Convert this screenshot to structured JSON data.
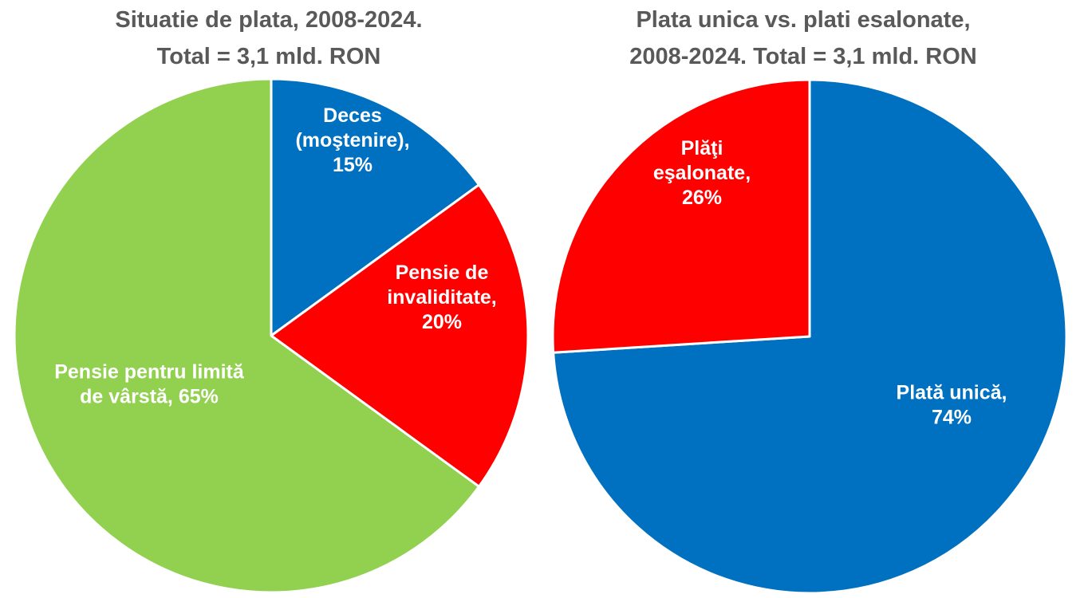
{
  "chart_data": [
    {
      "type": "pie",
      "title_lines": [
        "Situatie de plata, 2008-2024.",
        "Total = 3,1 mld. RON"
      ],
      "start_angle_deg": 0,
      "direction": "clockwise",
      "slices": [
        {
          "label_lines": [
            "Deces",
            "(moştenire),",
            "15%"
          ],
          "value": 15,
          "color": "#0070C0"
        },
        {
          "label_lines": [
            "Pensie de",
            "invaliditate,",
            "20%"
          ],
          "value": 20,
          "color": "#FF0000"
        },
        {
          "label_lines": [
            "Pensie pentru limită",
            "de vârstă, 65%"
          ],
          "value": 65,
          "color": "#92D050"
        }
      ]
    },
    {
      "type": "pie",
      "title_lines": [
        "Plata unica vs. plati esalonate,",
        "2008-2024. Total = 3,1 mld. RON"
      ],
      "start_angle_deg": 0,
      "direction": "clockwise",
      "slices": [
        {
          "label_lines": [
            "Plată unică,",
            "74%"
          ],
          "value": 74,
          "color": "#0070C0"
        },
        {
          "label_lines": [
            "Plăţi",
            "eşalonate,",
            "26%"
          ],
          "value": 26,
          "color": "#FF0000"
        }
      ]
    }
  ]
}
